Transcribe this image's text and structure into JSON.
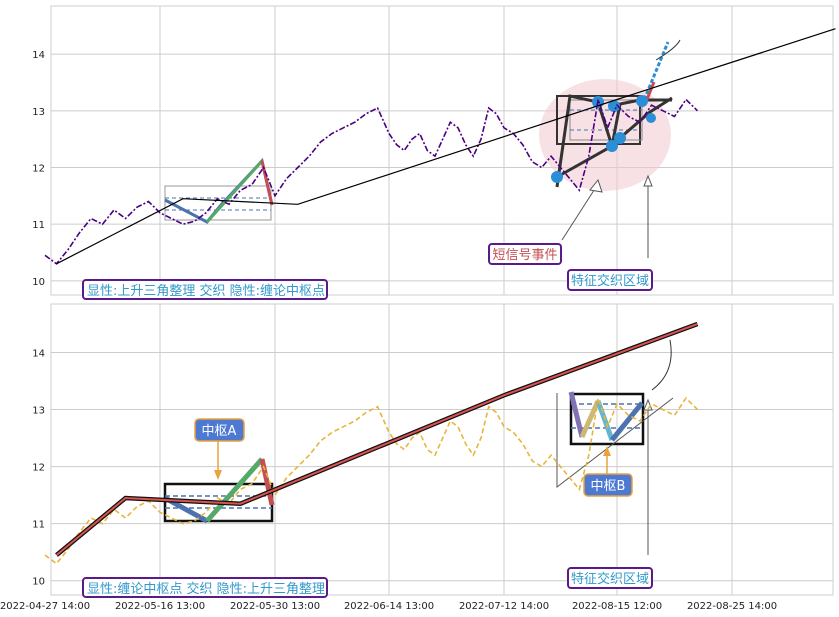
{
  "chart_data": [
    {
      "type": "line",
      "panel": "top",
      "x_ticks": [
        "2022-04-27 14:00",
        "2022-05-16 13:00",
        "2022-05-30 13:00",
        "2022-06-14 13:00",
        "2022-07-12 14:00",
        "2022-08-15 12:00",
        "2022-08-25 14:00"
      ],
      "y_ticks": [
        "10",
        "11",
        "12",
        "13",
        "14"
      ],
      "ylim": [
        9.75,
        14.85
      ],
      "grid": true,
      "series": [
        {
          "style": "dash-dot",
          "color": "#4b0082",
          "values": [
            [
              0.0,
              10.45
            ],
            [
              1.0,
              10.3
            ],
            [
              2.0,
              10.55
            ],
            [
              3.0,
              10.85
            ],
            [
              4.0,
              11.1
            ],
            [
              5.0,
              11.0
            ],
            [
              6.0,
              11.25
            ],
            [
              7.0,
              11.1
            ],
            [
              8.0,
              11.3
            ],
            [
              9.0,
              11.4
            ],
            [
              10.0,
              11.2
            ],
            [
              11.0,
              11.1
            ],
            [
              12.0,
              11.0
            ],
            [
              13.0,
              11.05
            ],
            [
              14.0,
              11.2
            ],
            [
              15.0,
              11.45
            ],
            [
              16.0,
              11.35
            ],
            [
              17.0,
              11.6
            ],
            [
              18.0,
              11.7
            ],
            [
              19.0,
              12.0
            ],
            [
              20.0,
              11.5
            ],
            [
              21.0,
              11.8
            ],
            [
              22.0,
              12.0
            ],
            [
              23.0,
              12.2
            ],
            [
              24.0,
              12.45
            ],
            [
              25.0,
              12.6
            ],
            [
              26.0,
              12.7
            ],
            [
              27.0,
              12.8
            ],
            [
              28.0,
              12.95
            ],
            [
              29.0,
              13.05
            ],
            [
              30.0,
              12.6
            ],
            [
              31.0,
              12.4
            ],
            [
              32.0,
              12.3
            ],
            [
              33.0,
              12.5
            ],
            [
              34.0,
              12.6
            ],
            [
              35.0,
              12.3
            ],
            [
              36.0,
              12.2
            ],
            [
              37.0,
              12.5
            ],
            [
              38.0,
              12.8
            ],
            [
              39.0,
              12.7
            ],
            [
              40.0,
              12.4
            ],
            [
              41.0,
              12.2
            ],
            [
              42.0,
              12.5
            ],
            [
              43.0,
              13.05
            ],
            [
              44.0,
              12.95
            ],
            [
              45.0,
              12.7
            ],
            [
              46.0,
              12.6
            ],
            [
              47.0,
              12.4
            ],
            [
              48.0,
              12.1
            ],
            [
              49.0,
              12.0
            ],
            [
              50.0,
              12.2
            ],
            [
              51.0,
              12.0
            ],
            [
              52.0,
              11.8
            ],
            [
              53.0,
              11.6
            ],
            [
              54.0,
              12.2
            ],
            [
              55.0,
              13.2
            ],
            [
              56.0,
              12.7
            ],
            [
              57.0,
              13.1
            ],
            [
              58.0,
              12.9
            ],
            [
              59.0,
              12.8
            ],
            [
              60.0,
              13.1
            ],
            [
              61.0,
              13.0
            ],
            [
              62.0,
              12.9
            ],
            [
              63.0,
              13.2
            ],
            [
              64.0,
              13.0
            ]
          ]
        },
        {
          "style": "line",
          "color": "#000000",
          "label": "trend",
          "values": [
            [
              1.0,
              10.3
            ],
            [
              12.0,
              11.45
            ],
            [
              22.0,
              11.35
            ],
            [
              57.0,
              13.2
            ],
            [
              76.0,
              14.45
            ]
          ]
        }
      ],
      "annotations": [
        "短信号事件",
        "特征交织区域",
        "显性:上升三角整理 交织 隐性:缠论中枢点"
      ]
    },
    {
      "type": "line",
      "panel": "bottom",
      "x_ticks": [
        "2022-04-27 14:00",
        "2022-05-16 13:00",
        "2022-05-30 13:00",
        "2022-06-14 13:00",
        "2022-07-12 14:00",
        "2022-08-15 12:00",
        "2022-08-25 14:00"
      ],
      "y_ticks": [
        "10",
        "11",
        "12",
        "13",
        "14"
      ],
      "ylim": [
        9.75,
        14.85
      ],
      "grid": true,
      "series": [
        {
          "style": "dashed",
          "color": "#e8b53c",
          "label": "price",
          "values": [
            [
              0.0,
              10.45
            ],
            [
              1.0,
              10.3
            ],
            [
              2.0,
              10.55
            ],
            [
              3.0,
              10.85
            ],
            [
              4.0,
              11.1
            ],
            [
              5.0,
              11.0
            ],
            [
              6.0,
              11.25
            ],
            [
              7.0,
              11.1
            ],
            [
              8.0,
              11.3
            ],
            [
              9.0,
              11.4
            ],
            [
              10.0,
              11.2
            ],
            [
              11.0,
              11.1
            ],
            [
              12.0,
              11.0
            ],
            [
              13.0,
              11.05
            ],
            [
              14.0,
              11.2
            ],
            [
              15.0,
              11.45
            ],
            [
              16.0,
              11.35
            ],
            [
              17.0,
              11.6
            ],
            [
              18.0,
              11.7
            ],
            [
              19.0,
              12.0
            ],
            [
              20.0,
              11.5
            ],
            [
              21.0,
              11.8
            ],
            [
              22.0,
              12.0
            ],
            [
              23.0,
              12.2
            ],
            [
              24.0,
              12.45
            ],
            [
              25.0,
              12.6
            ],
            [
              26.0,
              12.7
            ],
            [
              27.0,
              12.8
            ],
            [
              28.0,
              12.95
            ],
            [
              29.0,
              13.05
            ],
            [
              30.0,
              12.6
            ],
            [
              31.0,
              12.4
            ],
            [
              32.0,
              12.3
            ],
            [
              33.0,
              12.5
            ],
            [
              34.0,
              12.6
            ],
            [
              35.0,
              12.3
            ],
            [
              36.0,
              12.2
            ],
            [
              37.0,
              12.5
            ],
            [
              38.0,
              12.8
            ],
            [
              39.0,
              12.7
            ],
            [
              40.0,
              12.4
            ],
            [
              41.0,
              12.2
            ],
            [
              42.0,
              12.5
            ],
            [
              43.0,
              13.05
            ],
            [
              44.0,
              12.95
            ],
            [
              45.0,
              12.7
            ],
            [
              46.0,
              12.6
            ],
            [
              47.0,
              12.4
            ],
            [
              48.0,
              12.1
            ],
            [
              49.0,
              12.0
            ],
            [
              50.0,
              12.2
            ],
            [
              51.0,
              12.0
            ],
            [
              52.0,
              11.8
            ],
            [
              53.0,
              11.6
            ],
            [
              54.0,
              12.2
            ],
            [
              55.0,
              13.2
            ],
            [
              56.0,
              12.7
            ],
            [
              57.0,
              13.1
            ],
            [
              58.0,
              12.9
            ],
            [
              59.0,
              12.8
            ],
            [
              60.0,
              13.1
            ],
            [
              61.0,
              13.0
            ],
            [
              62.0,
              12.9
            ],
            [
              63.0,
              13.2
            ],
            [
              64.0,
              13.0
            ]
          ]
        },
        {
          "style": "line",
          "color": "#d9534f",
          "label": "trend",
          "values": [
            [
              1.0,
              10.45
            ],
            [
              7.0,
              11.45
            ],
            [
              17.0,
              11.35
            ],
            [
              45.0,
              13.25
            ],
            [
              64.0,
              14.5
            ]
          ]
        }
      ],
      "annotations": [
        "中枢A",
        "中枢B",
        "特征交织区域",
        "显性:缠论中枢点 交织 隐性:上升三角整理"
      ]
    }
  ],
  "labels": {
    "top_event": "短信号事件",
    "top_region": "特征交织区域",
    "top_caption": "显性:上升三角整理 交织 隐性:缠论中枢点",
    "bot_center_a": "中枢A",
    "bot_center_b": "中枢B",
    "bot_region": "特征交织区域",
    "bot_caption": "显性:缠论中枢点 交织 隐性:上升三角整理"
  },
  "colors": {
    "grid": "#cccccc",
    "purple_price": "#4b0082",
    "gold_price": "#e8b53c",
    "blue_stroke": "#4c72b0",
    "green_stroke": "#55a868",
    "red_stroke": "#c44e52",
    "dot_blue": "#2a8fd6",
    "caption_text": "#3399cc",
    "caption_border": "#5a1a8a",
    "label_box_fill": "#4d79d3"
  }
}
